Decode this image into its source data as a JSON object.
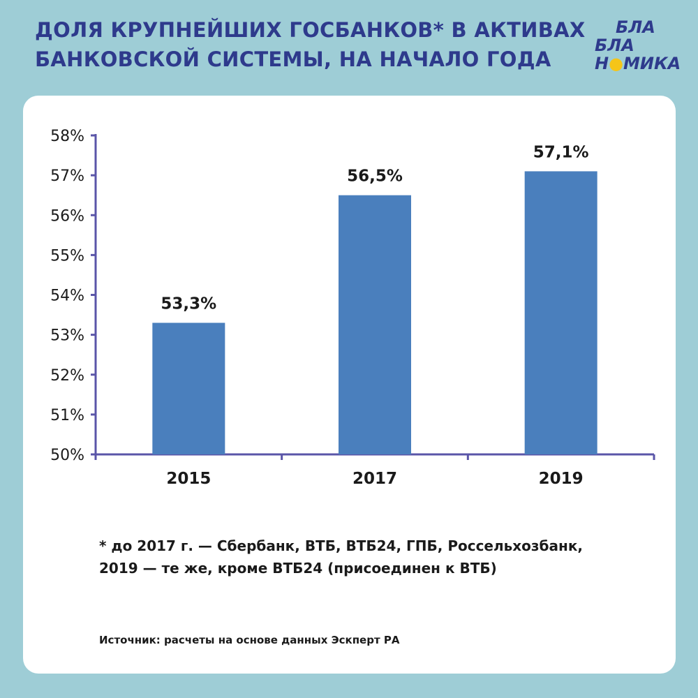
{
  "title": {
    "line1": "ДОЛЯ КРУПНЕЙШИХ ГОСБАНКОВ* В АКТИВАХ",
    "line2": "БАНКОВСКОЙ СИСТЕМЫ,  НА НАЧАЛО ГОДА"
  },
  "logo": {
    "line1": "БЛА",
    "line2": "БЛА",
    "line3_pre": "Н",
    "line3_dot": "●",
    "line3_post": "МИКА",
    "accent_color": "#f5c518"
  },
  "colors": {
    "background": "#9ecdd6",
    "title": "#2e3a8c",
    "bar": "#4a7fbd",
    "axis": "#5a55a8"
  },
  "chart_data": {
    "type": "bar",
    "categories": [
      "2015",
      "2017",
      "2019"
    ],
    "values": [
      53.3,
      56.5,
      57.1
    ],
    "data_labels": [
      "53,3%",
      "56,5%",
      "57,1%"
    ],
    "ylim": [
      50,
      58
    ],
    "yticks": [
      50,
      51,
      52,
      53,
      54,
      55,
      56,
      57,
      58
    ],
    "ytick_labels": [
      "50%",
      "51%",
      "52%",
      "53%",
      "54%",
      "55%",
      "56%",
      "57%",
      "58%"
    ],
    "grid": false,
    "legend": "none"
  },
  "footnote": {
    "line1": "* до 2017 г. — Сбербанк, ВТБ, ВТБ24, ГПБ, Россельхозбанк,",
    "line2": "2019 — те же, кроме ВТБ24 (присоединен к ВТБ)"
  },
  "source": "Источник: расчеты на основе данных Эскперт РА"
}
